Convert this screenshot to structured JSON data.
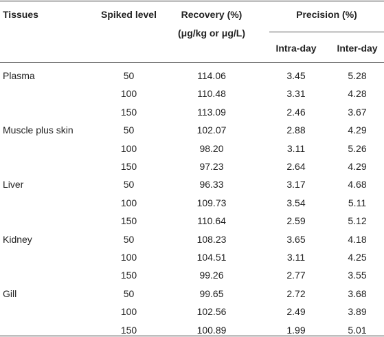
{
  "headers": {
    "tissues": "Tissues",
    "spiked_level": "Spiked level",
    "recovery_line1": "Recovery (%)",
    "recovery_line2": "(μg/kg or μg/L)",
    "precision": "Precision (%)",
    "intra_day": "Intra-day",
    "inter_day": "Inter-day"
  },
  "rows": [
    {
      "tissue": "Plasma",
      "spiked": "50",
      "recovery": "114.06",
      "intra": "3.45",
      "inter": "5.28"
    },
    {
      "tissue": "",
      "spiked": "100",
      "recovery": "110.48",
      "intra": "3.31",
      "inter": "4.28"
    },
    {
      "tissue": "",
      "spiked": "150",
      "recovery": "113.09",
      "intra": "2.46",
      "inter": "3.67"
    },
    {
      "tissue": "Muscle plus skin",
      "spiked": "50",
      "recovery": "102.07",
      "intra": "2.88",
      "inter": "4.29"
    },
    {
      "tissue": "",
      "spiked": "100",
      "recovery": "98.20",
      "intra": "3.11",
      "inter": "5.26"
    },
    {
      "tissue": "",
      "spiked": "150",
      "recovery": "97.23",
      "intra": "2.64",
      "inter": "4.29"
    },
    {
      "tissue": "Liver",
      "spiked": "50",
      "recovery": "96.33",
      "intra": "3.17",
      "inter": "4.68"
    },
    {
      "tissue": "",
      "spiked": "100",
      "recovery": "109.73",
      "intra": "3.54",
      "inter": "5.11"
    },
    {
      "tissue": "",
      "spiked": "150",
      "recovery": "110.64",
      "intra": "2.59",
      "inter": "5.12"
    },
    {
      "tissue": "Kidney",
      "spiked": "50",
      "recovery": "108.23",
      "intra": "3.65",
      "inter": "4.18"
    },
    {
      "tissue": "",
      "spiked": "100",
      "recovery": "104.51",
      "intra": "3.11",
      "inter": "4.25"
    },
    {
      "tissue": "",
      "spiked": "150",
      "recovery": "99.26",
      "intra": "2.77",
      "inter": "3.55"
    },
    {
      "tissue": "Gill",
      "spiked": "50",
      "recovery": "99.65",
      "intra": "2.72",
      "inter": "3.68"
    },
    {
      "tissue": "",
      "spiked": "100",
      "recovery": "102.56",
      "intra": "2.49",
      "inter": "3.89"
    },
    {
      "tissue": "",
      "spiked": "150",
      "recovery": "100.89",
      "intra": "1.99",
      "inter": "5.01"
    }
  ]
}
